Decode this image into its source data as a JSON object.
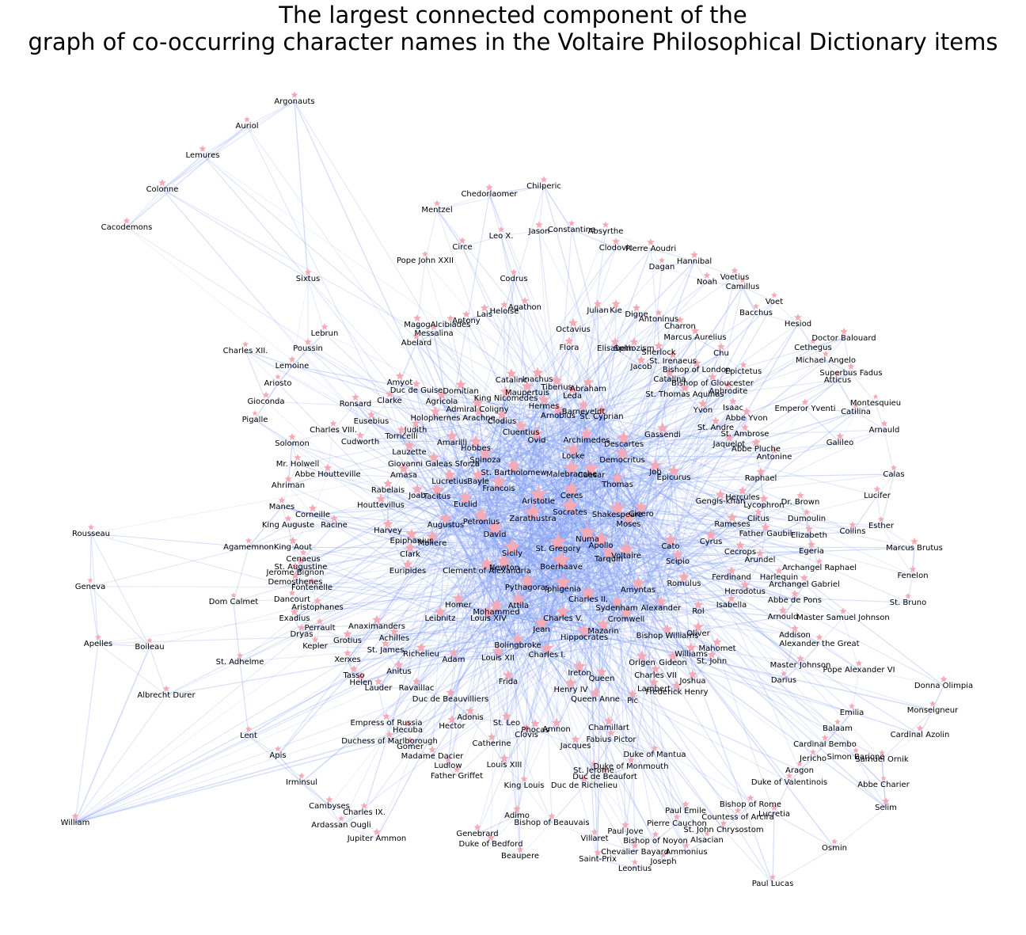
{
  "title_line1": "The largest connected component of the",
  "title_line2": "graph of co-occurring character names in the Voltaire Philosophical Dictionary items",
  "colors": {
    "edge": "#7f9cf5",
    "node": "#f5aab5",
    "label": "#000000",
    "background": "#ffffff"
  },
  "nodes": [
    "Argonauts",
    "Auriol",
    "Lemures",
    "Colonne",
    "Cacodemons",
    "Sixtus",
    "Charles XII.",
    "Chedorlaomer",
    "Chilperic",
    "Mentzel",
    "Circe",
    "Leo X.",
    "Jason",
    "Constantine",
    "Absyrthe",
    "Pope John XXII",
    "Codrus",
    "Clodovic",
    "Pierre Aoudri",
    "Hannibal",
    "Dagan",
    "Noah",
    "Voetius",
    "Camillus",
    "Voet",
    "Bacchus",
    "Hesiod",
    "Doctor Balouard",
    "Cethegus",
    "Michael Angelo",
    "Superbus Fadus",
    "Atticus",
    "Montesquieu",
    "Catilina",
    "Emperor Yventi",
    "Arnauld",
    "Galileo",
    "Calas",
    "Lucifer",
    "Esther",
    "Collins",
    "Marcus Brutus",
    "Fenelon",
    "St. Bruno",
    "Lebrun",
    "Poussin",
    "Lemoine",
    "Ariosto",
    "Gioconda",
    "Pigalle",
    "Solomon",
    "Mr. Holwell",
    "Abbe Houtteville",
    "Ahriman",
    "Manes",
    "King Auguste",
    "Agamemnon",
    "King Aout",
    "Rousseau",
    "Geneva",
    "Apelles",
    "Boileau",
    "Albrecht Durer",
    "Dom Calmet",
    "St. Adhelme",
    "Lent",
    "Apis",
    "Irminsul",
    "Cambyses",
    "Ardassan Ougli",
    "Charles IX.",
    "Jupiter Ammon",
    "William",
    "Magog",
    "Alcibiades",
    "Messalina",
    "Abelard",
    "Antony",
    "Lais",
    "Heloise",
    "Agathon",
    "Octavius",
    "Flora",
    "Julian",
    "Kie",
    "Digne",
    "Antoninus",
    "Charron",
    "Elisabeth",
    "Spinozism",
    "Sherlock",
    "St. Irenaeus",
    "Jacob",
    "Bishop of London",
    "Marcus Aurelius",
    "Chu",
    "Epictetus",
    "Bishop of Gloucester",
    "Aphrodite",
    "Catalina",
    "St. Thomas Aquinas",
    "Yvon",
    "Isaac",
    "Abbe Yvon",
    "St. Andre",
    "St. Ambrose",
    "Jaquelot",
    "Abbe Pluche",
    "Antonine",
    "Raphael",
    "Hercules",
    "Lycophron",
    "Dr. Brown",
    "Gengis-khan",
    "Clitus",
    "Dumoulin",
    "Elizabeth",
    "Father Gaubil",
    "Rameses",
    "Cyrus",
    "Cecrops",
    "Egeria",
    "Arundel",
    "Archangel Raphael",
    "Harlequin",
    "Archangel Gabriel",
    "Abbe de Pons",
    "Arnould",
    "Master Samuel Johnson",
    "Addison",
    "Alexander the Great",
    "Master Johnson",
    "Pope Alexander VI",
    "Darius",
    "Donna Olimpia",
    "Monseigneur",
    "Cardinal Azolin",
    "Emilia",
    "Balaam",
    "Cardinal Bembo",
    "Jericho",
    "Simon Barjone",
    "Samuel Ornik",
    "Aragon",
    "Abbe Charier",
    "Duke of Valentinois",
    "Selim",
    "Bishop of Rome",
    "Lucretia",
    "Countess of Arcira",
    "St. John Chrysostom",
    "Osmin",
    "Paul Lucas",
    "Amyot",
    "Duc de Guise",
    "Domitian",
    "Ronsard",
    "Clarke",
    "Agricola",
    "Eusebius",
    "Charles VIII.",
    "Cudworth",
    "Judith",
    "Torricelli",
    "Lauzette",
    "Giovanni Galeas Sforza",
    "Amasa",
    "Rabelais",
    "Joab",
    "Houttevillus",
    "Corneille",
    "Racine",
    "Cenaeus",
    "St. Augustine",
    "Jerome Bignon",
    "Demosthenes",
    "Fontenelle",
    "Dancourt",
    "Aristophanes",
    "Exadius",
    "Perrault",
    "Dryas",
    "Kepler",
    "Grotius",
    "Xerxes",
    "Tasso",
    "Helen",
    "Lauder",
    "Anitus",
    "Anaximanders",
    "St. James",
    "Achilles",
    "Richelieu",
    "Adam",
    "Ravaillac",
    "Duc de Beauvilliers",
    "Empress of Russia",
    "Hecuba",
    "Duchess of Marlborough",
    "Gomer",
    "Madame Dacier",
    "Ludlow",
    "Father Griffet",
    "Adonis",
    "Hector",
    "Catalinc",
    "Inachus",
    "Tiberius",
    "Abraham",
    "Leda",
    "Maupertuis",
    "Hermes",
    "Barneveldt",
    "Arnobius",
    "St. Cyprian",
    "King Nicomedes",
    "Admiral Coligny",
    "Arachne",
    "Holophernes",
    "Clodius",
    "Cluentius",
    "Ovid",
    "Archimedes",
    "Descartes",
    "Gassendi",
    "Amarilli",
    "Hobbes",
    "Spinoza",
    "Locke",
    "Democritus",
    "St. Bartholomew",
    "Malebranche",
    "Caesar",
    "Job",
    "Lucretius",
    "Bayle",
    "Francois",
    "Tacitus",
    "Thomas",
    "Epicurus",
    "Ceres",
    "Aristotle",
    "Euclid",
    "Petronius",
    "Socrates",
    "Shakespeare",
    "Cicero",
    "Moses",
    "Augustus",
    "Zarathustra",
    "David",
    "Numa",
    "Apollo",
    "Cato",
    "Harvey",
    "Epiphanius",
    "Moliere",
    "Clark",
    "Sicily",
    "St. Gregory",
    "Voltaire",
    "Tarquin",
    "Scipio",
    "Euripides",
    "Clement of Alexandria",
    "Newton",
    "Boerhaave",
    "Romulus",
    "Pythagoras",
    "Iphigenia",
    "Amyntas",
    "Charles II.",
    "Homer",
    "Sydenham",
    "Alexander",
    "Attila",
    "Mohammed",
    "Louis XIV",
    "Leibnitz",
    "Charles V.",
    "Cromwell",
    "Jean",
    "Hippocrates",
    "Mazarin",
    "Bishop Williams",
    "Bolingbroke",
    "Charles I.",
    "Louis XII",
    "Williams",
    "Mahomet",
    "St. John",
    "Ireton",
    "Origen",
    "Gideon",
    "Queen",
    "Charles VII",
    "Joshua",
    "Henry IV",
    "Frida",
    "Lambert",
    "Frederick Henry",
    "Queen Anne",
    "Pic",
    "St. Leo",
    "Phocas",
    "Amnon",
    "Chamillart",
    "Clovis",
    "Catherine",
    "Jacques",
    "Fabius Pictor",
    "Duke of Mantua",
    "Louis XIII",
    "St. Jerome",
    "Duke of Monmouth",
    "Duc de Beaufort",
    "King Louis",
    "Duc de Richelieu",
    "Adimo",
    "Bishop of Beauvais",
    "Paul Emile",
    "Pierre Cauchon",
    "Genebrard",
    "Duke of Bedford",
    "Paul Jove",
    "Villaret",
    "Bishop of Noyon",
    "Alsacian",
    "Chevalier Bayard",
    "Ammonius",
    "Beaupere",
    "Joseph",
    "Saint-Prix",
    "Leontius",
    "Mazarin",
    "Epicurus",
    "Ferdinand",
    "Herodotus",
    "Isabella",
    "Rol",
    "Oliver",
    "Sherlock"
  ]
}
